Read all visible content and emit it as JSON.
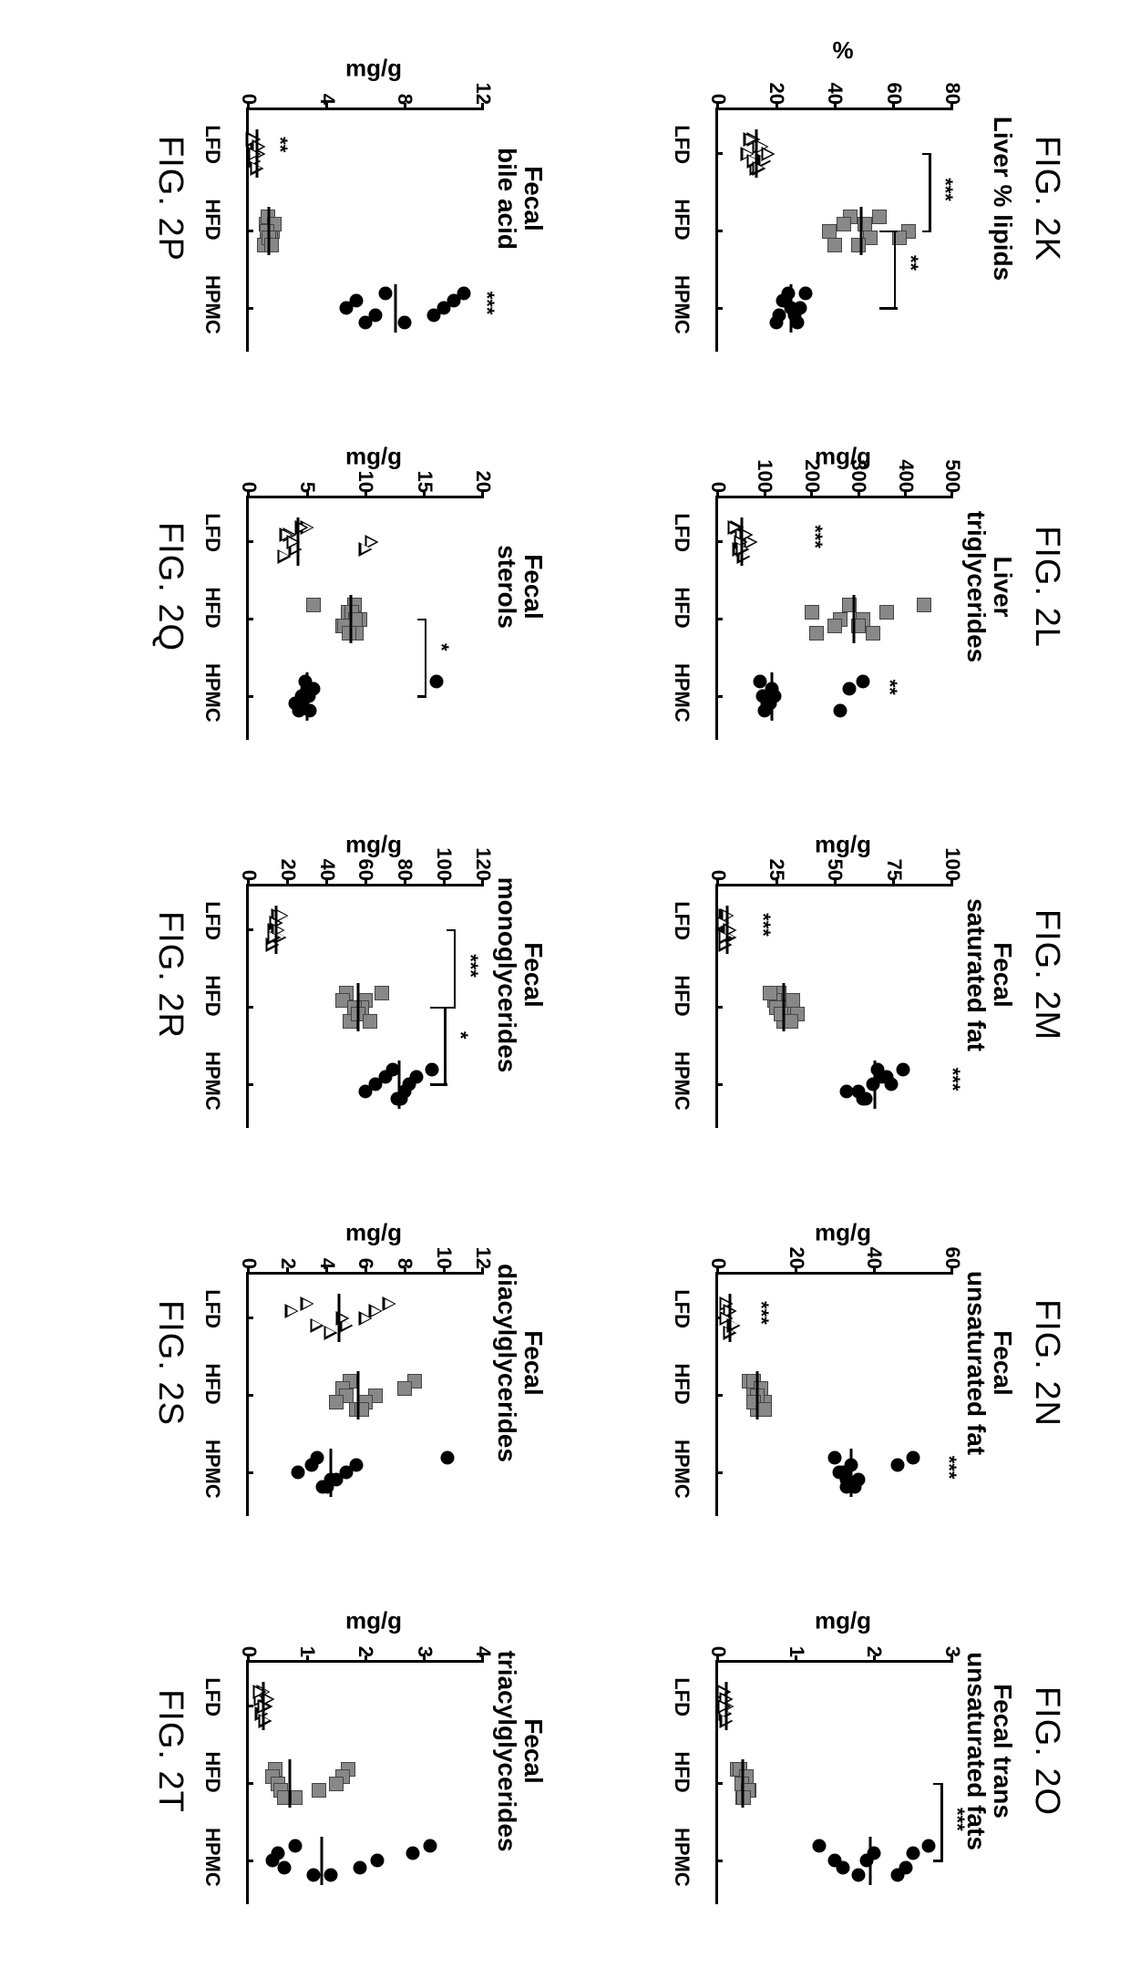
{
  "panels": [
    {
      "row": 0,
      "col": 0,
      "figTop": "FIG. 2K",
      "figBottom": null,
      "title": "Liver % lipids",
      "ylabel": "%",
      "ymin": 0,
      "ymax": 80,
      "ystep": 20,
      "groups": [
        "LFD",
        "HFD",
        "HPMC"
      ],
      "series": [
        {
          "group": 0,
          "shape": "tri",
          "y": [
            12,
            14,
            10,
            16,
            13,
            11,
            15,
            17,
            12,
            14
          ]
        },
        {
          "group": 1,
          "shape": "sq",
          "y": [
            55,
            50,
            65,
            62,
            40,
            45,
            43,
            38,
            52,
            48
          ]
        },
        {
          "group": 2,
          "shape": "circ",
          "y": [
            24,
            22,
            28,
            26,
            20,
            30,
            23,
            25,
            21,
            27
          ]
        }
      ],
      "medians": [
        {
          "g": 0,
          "y": 13
        },
        {
          "g": 1,
          "y": 49
        },
        {
          "g": 2,
          "y": 25
        }
      ],
      "brackets": [
        {
          "from": 0,
          "to": 1,
          "y": 72,
          "label": "***"
        },
        {
          "from": 1,
          "to": 2,
          "y": 60,
          "label": "**",
          "drop": true
        }
      ]
    },
    {
      "row": 0,
      "col": 1,
      "figTop": "FIG. 2L",
      "figBottom": null,
      "title": "Liver\ntriglycerides",
      "ylabel": "mg/g",
      "ymin": 0,
      "ymax": 500,
      "ystep": 100,
      "groups": [
        "LFD",
        "HFD",
        "HPMC"
      ],
      "series": [
        {
          "group": 0,
          "shape": "tri",
          "y": [
            40,
            50,
            70,
            45,
            55,
            35,
            60,
            48,
            52
          ]
        },
        {
          "group": 1,
          "shape": "sq",
          "y": [
            440,
            360,
            310,
            300,
            330,
            280,
            200,
            260,
            250,
            210
          ]
        },
        {
          "group": 2,
          "shape": "circ",
          "y": [
            310,
            280,
            120,
            110,
            100,
            90,
            115,
            95,
            105,
            260
          ]
        }
      ],
      "medians": [
        {
          "g": 0,
          "y": 50
        },
        {
          "g": 1,
          "y": 290
        },
        {
          "g": 2,
          "y": 115
        }
      ],
      "brackets": [],
      "freeSig": [
        {
          "g": 0,
          "y": 180,
          "label": "***"
        },
        {
          "g": 2,
          "y": 340,
          "label": "**"
        }
      ]
    },
    {
      "row": 0,
      "col": 2,
      "figTop": "FIG. 2M",
      "figBottom": null,
      "title": "Fecal\nsaturated fat",
      "ylabel": "mg/g",
      "ymin": 0,
      "ymax": 100,
      "ystep": 25,
      "groups": [
        "LFD",
        "HFD",
        "HPMC"
      ],
      "series": [
        {
          "group": 0,
          "shape": "tri",
          "y": [
            3,
            2,
            4,
            5,
            3,
            4,
            2,
            5,
            3
          ]
        },
        {
          "group": 1,
          "shape": "sq",
          "y": [
            26,
            24,
            30,
            34,
            28,
            22,
            32,
            25,
            27,
            31
          ]
        },
        {
          "group": 2,
          "shape": "circ",
          "y": [
            79,
            72,
            66,
            60,
            63,
            68,
            70,
            74,
            55,
            62
          ]
        }
      ],
      "medians": [
        {
          "g": 0,
          "y": 4
        },
        {
          "g": 1,
          "y": 28
        },
        {
          "g": 2,
          "y": 67
        }
      ],
      "brackets": [],
      "freeSig": [
        {
          "g": 0,
          "y": 14,
          "label": "***"
        },
        {
          "g": 2,
          "y": 95,
          "label": "***"
        }
      ]
    },
    {
      "row": 0,
      "col": 3,
      "figTop": "FIG. 2N",
      "figBottom": null,
      "title": "Fecal\nunsaturated fat",
      "ylabel": "mg/g",
      "ymin": 0,
      "ymax": 60,
      "ystep": 20,
      "groups": [
        "LFD",
        "HFD",
        "HPMC"
      ],
      "series": [
        {
          "group": 0,
          "shape": "tri",
          "y": [
            2,
            3,
            2,
            4,
            3,
            2,
            3,
            2,
            4
          ]
        },
        {
          "group": 1,
          "shape": "sq",
          "y": [
            8,
            9,
            11,
            12,
            10,
            9,
            11,
            10,
            9,
            12
          ]
        },
        {
          "group": 2,
          "shape": "circ",
          "y": [
            50,
            46,
            32,
            33,
            35,
            30,
            34,
            31,
            36,
            33
          ]
        }
      ],
      "medians": [
        {
          "g": 0,
          "y": 3
        },
        {
          "g": 1,
          "y": 10
        },
        {
          "g": 2,
          "y": 34
        }
      ],
      "brackets": [],
      "freeSig": [
        {
          "g": 0,
          "y": 8,
          "label": "***"
        },
        {
          "g": 2,
          "y": 56,
          "label": "***"
        }
      ]
    },
    {
      "row": 0,
      "col": 4,
      "figTop": "FIG. 2O",
      "figBottom": null,
      "title": "Fecal trans\nunsaturated fats",
      "ylabel": "mg/g",
      "ymin": 0,
      "ymax": 3,
      "ystep": 1,
      "groups": [
        "LFD",
        "HFD",
        "HPMC"
      ],
      "series": [
        {
          "group": 0,
          "shape": "tri",
          "y": [
            0.08,
            0.1,
            0.12,
            0.09,
            0.11,
            0.07,
            0.1,
            0.08
          ]
        },
        {
          "group": 1,
          "shape": "sq",
          "y": [
            0.25,
            0.35,
            0.3,
            0.4,
            0.32,
            0.28,
            0.36,
            0.3,
            0.38,
            0.33
          ]
        },
        {
          "group": 2,
          "shape": "circ",
          "y": [
            2.7,
            2.5,
            1.9,
            1.6,
            2.3,
            1.3,
            2.0,
            1.5,
            2.4,
            1.8
          ]
        }
      ],
      "medians": [
        {
          "g": 0,
          "y": 0.1
        },
        {
          "g": 1,
          "y": 0.32
        },
        {
          "g": 2,
          "y": 1.95
        }
      ],
      "brackets": [
        {
          "from": 1,
          "to": 2,
          "y": 2.85,
          "label": "***"
        }
      ]
    },
    {
      "row": 1,
      "col": 0,
      "figTop": null,
      "figBottom": "FIG. 2P",
      "title": "Fecal\nbile acid",
      "ylabel": "mg/g",
      "ymin": 0,
      "ymax": 12,
      "ystep": 4,
      "groups": [
        "LFD",
        "HFD",
        "HPMC"
      ],
      "series": [
        {
          "group": 0,
          "shape": "tri",
          "y": [
            0.3,
            0.4,
            0.5,
            0.3,
            0.4,
            0.2,
            0.5,
            0.3
          ]
        },
        {
          "group": 1,
          "shape": "sq",
          "y": [
            1.0,
            0.9,
            1.2,
            1.1,
            0.8,
            1.0,
            1.3,
            0.95,
            1.05,
            1.15
          ]
        },
        {
          "group": 2,
          "shape": "circ",
          "y": [
            11,
            10.5,
            10,
            9.5,
            8,
            7,
            5.5,
            5,
            6.5,
            6
          ]
        }
      ],
      "medians": [
        {
          "g": 0,
          "y": 0.4
        },
        {
          "g": 1,
          "y": 1.05
        },
        {
          "g": 2,
          "y": 7.5
        }
      ],
      "brackets": [],
      "freeSig": [
        {
          "g": 0,
          "y": 1.0,
          "label": "**"
        },
        {
          "g": 2,
          "y": 11.6,
          "label": "***"
        }
      ]
    },
    {
      "row": 1,
      "col": 1,
      "figTop": null,
      "figBottom": "FIG. 2Q",
      "title": "Fecal\nsterols",
      "ylabel": "mg/g",
      "ymin": 0,
      "ymax": 20,
      "ystep": 5,
      "groups": [
        "LFD",
        "HFD",
        "HPMC"
      ],
      "series": [
        {
          "group": 0,
          "shape": "tri",
          "y": [
            5,
            3.5,
            10.5,
            4,
            3,
            4.5,
            3.2,
            3.8,
            10
          ]
        },
        {
          "group": 1,
          "shape": "sq",
          "y": [
            9,
            8.5,
            9.5,
            8,
            9.2,
            5.5,
            8.8,
            9.1,
            8.2,
            8.6
          ]
        },
        {
          "group": 2,
          "shape": "circ",
          "y": [
            16,
            5,
            4.5,
            4,
            5.2,
            4.8,
            5.5,
            5.1,
            4.6,
            4.3
          ]
        }
      ],
      "medians": [
        {
          "g": 0,
          "y": 4.2
        },
        {
          "g": 1,
          "y": 8.7
        },
        {
          "g": 2,
          "y": 5.0
        }
      ],
      "brackets": [
        {
          "from": 1,
          "to": 2,
          "y": 15,
          "label": "*"
        }
      ]
    },
    {
      "row": 1,
      "col": 2,
      "figTop": null,
      "figBottom": "FIG. 2R",
      "title": "Fecal\nmonoglycerides",
      "ylabel": "mg/g",
      "ymin": 0,
      "ymax": 120,
      "ystep": 20,
      "groups": [
        "LFD",
        "HFD",
        "HPMC"
      ],
      "series": [
        {
          "group": 0,
          "shape": "tri",
          "y": [
            15,
            14,
            13,
            16,
            12,
            17,
            14,
            15,
            13
          ]
        },
        {
          "group": 1,
          "shape": "sq",
          "y": [
            68,
            60,
            58,
            55,
            52,
            50,
            48,
            54,
            56,
            62
          ]
        },
        {
          "group": 2,
          "shape": "circ",
          "y": [
            94,
            86,
            82,
            80,
            76,
            74,
            70,
            65,
            60,
            78
          ]
        }
      ],
      "medians": [
        {
          "g": 0,
          "y": 14
        },
        {
          "g": 1,
          "y": 56
        },
        {
          "g": 2,
          "y": 77
        }
      ],
      "brackets": [
        {
          "from": 0,
          "to": 1,
          "y": 105,
          "label": "***"
        },
        {
          "from": 1,
          "to": 2,
          "y": 100,
          "label": "*",
          "drop": true
        }
      ]
    },
    {
      "row": 1,
      "col": 3,
      "figTop": null,
      "figBottom": "FIG. 2S",
      "title": "Fecal\ndiacylglycerides",
      "ylabel": "mg/g",
      "ymin": 0,
      "ymax": 12,
      "ystep": 2,
      "groups": [
        "LFD",
        "HFD",
        "HPMC"
      ],
      "series": [
        {
          "group": 0,
          "shape": "tri",
          "y": [
            7.2,
            6.5,
            6,
            5,
            4.2,
            3,
            2.2,
            4.8,
            3.5
          ]
        },
        {
          "group": 1,
          "shape": "sq",
          "y": [
            8.5,
            8,
            6.5,
            6,
            5.5,
            5.2,
            4.8,
            5,
            4.5,
            5.8
          ]
        },
        {
          "group": 2,
          "shape": "circ",
          "y": [
            10.2,
            5.5,
            5,
            4.5,
            4,
            3.5,
            3.2,
            2.5,
            4.2,
            3.8
          ]
        }
      ],
      "medians": [
        {
          "g": 0,
          "y": 4.6
        },
        {
          "g": 1,
          "y": 5.6
        },
        {
          "g": 2,
          "y": 4.2
        }
      ],
      "brackets": []
    },
    {
      "row": 1,
      "col": 4,
      "figTop": null,
      "figBottom": "FIG. 2T",
      "title": "Fecal\ntriacylglycerides",
      "ylabel": "mg/g",
      "ymin": 0,
      "ymax": 4,
      "ystep": 1,
      "groups": [
        "LFD",
        "HFD",
        "HPMC"
      ],
      "series": [
        {
          "group": 0,
          "shape": "tri",
          "y": [
            0.25,
            0.2,
            0.3,
            0.22,
            0.28,
            0.18,
            0.32,
            0.26
          ]
        },
        {
          "group": 1,
          "shape": "sq",
          "y": [
            1.7,
            1.6,
            1.5,
            1.2,
            0.8,
            0.45,
            0.4,
            0.5,
            0.55,
            0.6
          ]
        },
        {
          "group": 2,
          "shape": "circ",
          "y": [
            3.1,
            2.8,
            2.2,
            1.9,
            1.1,
            0.8,
            0.5,
            0.4,
            0.6,
            1.4
          ]
        }
      ],
      "medians": [
        {
          "g": 0,
          "y": 0.25
        },
        {
          "g": 1,
          "y": 0.7
        },
        {
          "g": 2,
          "y": 1.25
        }
      ],
      "brackets": []
    }
  ]
}
